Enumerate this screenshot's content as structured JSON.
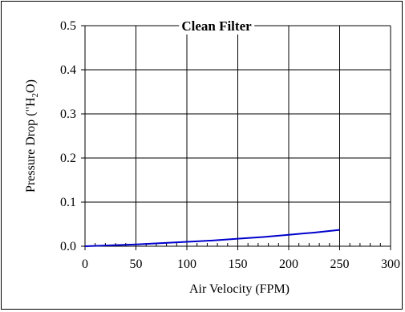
{
  "chart_data": {
    "type": "line",
    "title": "Clean Filter",
    "xlabel": "Air Velocity (FPM)",
    "ylabel_parts": {
      "before": "Pressure Drop (\"H",
      "sub": "2",
      "after": "O)"
    },
    "xlim": [
      0,
      300
    ],
    "ylim": [
      0,
      0.5
    ],
    "xticks": [
      0,
      50,
      100,
      150,
      200,
      250,
      300
    ],
    "yticks": [
      0.0,
      0.1,
      0.2,
      0.3,
      0.4,
      0.5
    ],
    "x_tick_labels": [
      "0",
      "50",
      "100",
      "150",
      "200",
      "250",
      "300"
    ],
    "y_tick_labels": [
      "0.0",
      "0.1",
      "0.2",
      "0.3",
      "0.4",
      "0.5"
    ],
    "grid": true,
    "series": [
      {
        "color": "#0000cc",
        "x": [
          0,
          25,
          50,
          75,
          100,
          125,
          150,
          175,
          200,
          225,
          250
        ],
        "y": [
          0.0,
          0.002,
          0.004,
          0.007,
          0.01,
          0.013,
          0.017,
          0.021,
          0.026,
          0.031,
          0.037
        ]
      }
    ]
  }
}
